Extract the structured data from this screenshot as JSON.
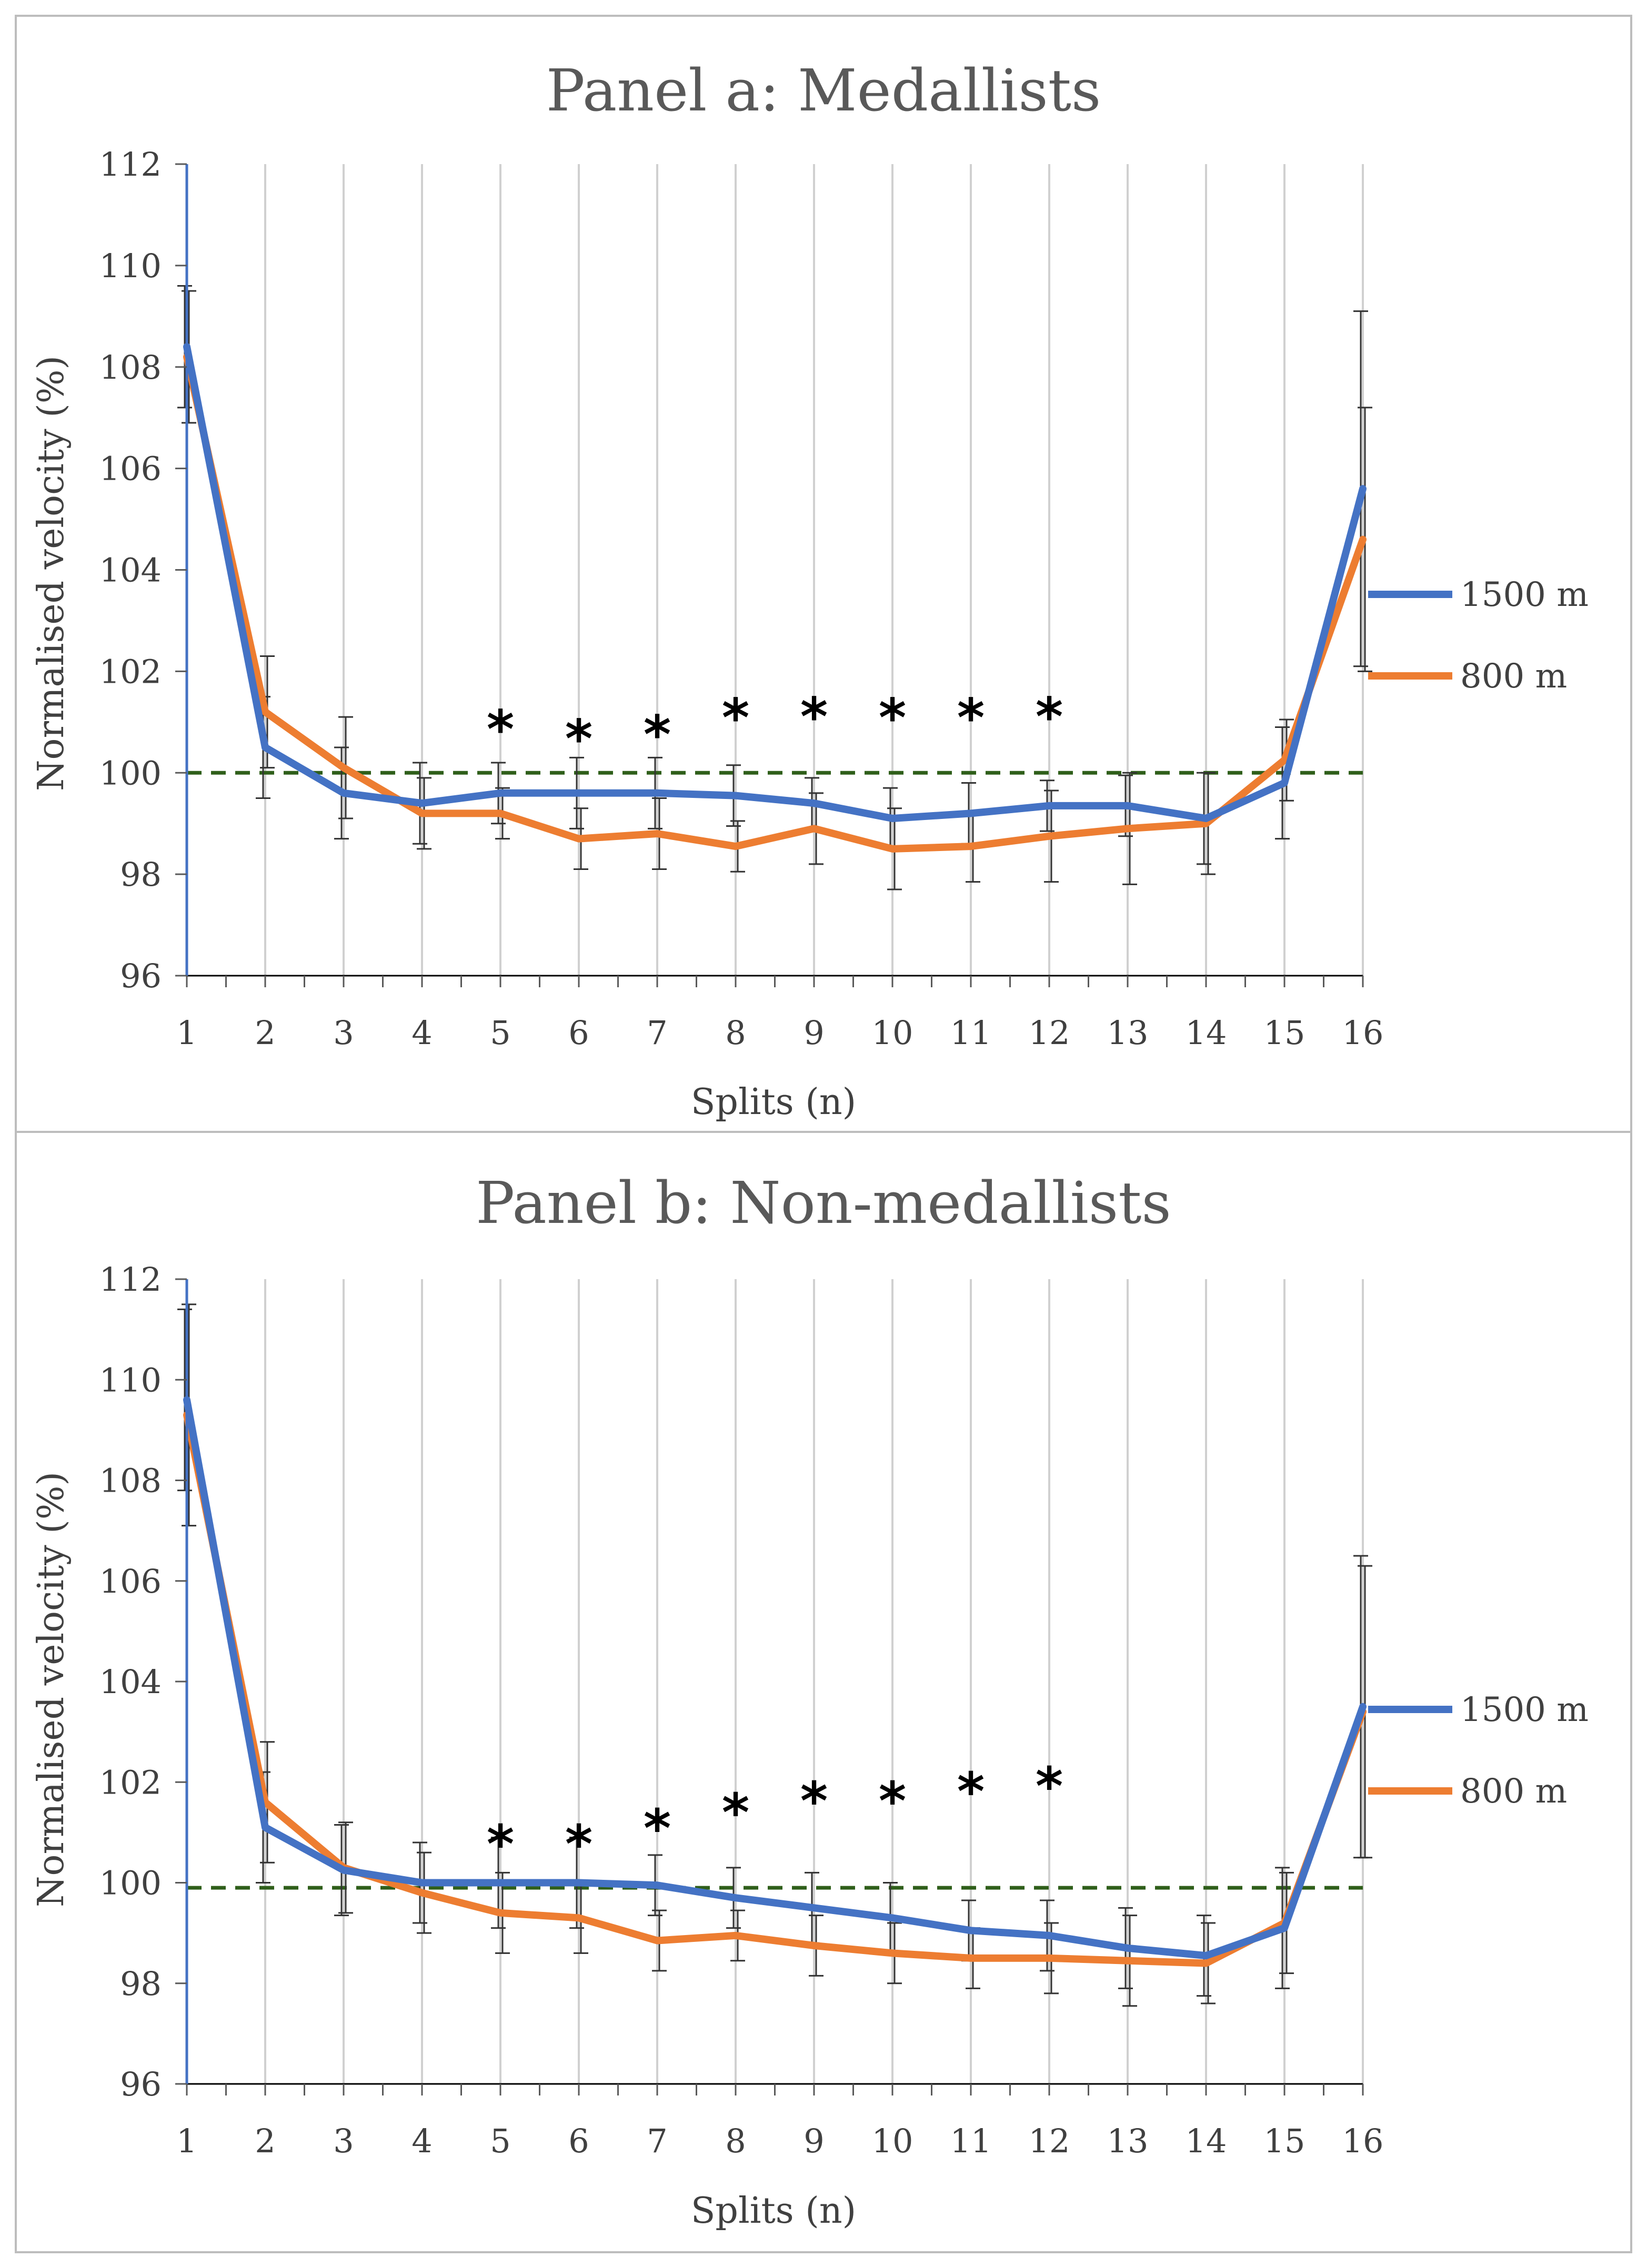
{
  "colors": {
    "series_1500": "#4472c4",
    "series_800": "#ed7d31",
    "reference": "#2f5f1a",
    "error_bar": "#333333"
  },
  "chart_data": [
    {
      "type": "line",
      "title": "Panel a: Medallists",
      "xlabel": "Splits (n)",
      "ylabel": "Normalised velocity (%)",
      "categories": [
        "1",
        "2",
        "3",
        "4",
        "5",
        "6",
        "7",
        "8",
        "9",
        "10",
        "11",
        "12",
        "13",
        "14",
        "15",
        "16"
      ],
      "ylim": [
        96,
        112
      ],
      "yticks": [
        "96",
        "98",
        "100",
        "102",
        "104",
        "106",
        "108",
        "110",
        "112"
      ],
      "reference_line": 100,
      "series": [
        {
          "name": "1500 m",
          "color": "#4472c4",
          "values": [
            108.4,
            100.5,
            99.6,
            99.4,
            99.6,
            99.6,
            99.6,
            99.55,
            99.4,
            99.1,
            99.2,
            99.35,
            99.35,
            99.1,
            99.8,
            105.6
          ],
          "error": [
            1.2,
            1.0,
            0.9,
            0.8,
            0.6,
            0.7,
            0.7,
            0.6,
            0.5,
            0.6,
            0.6,
            0.5,
            0.6,
            0.9,
            1.1,
            3.5
          ]
        },
        {
          "name": "800 m",
          "color": "#ed7d31",
          "values": [
            108.2,
            101.2,
            100.1,
            99.2,
            99.2,
            98.7,
            98.8,
            98.55,
            98.9,
            98.5,
            98.55,
            98.75,
            98.9,
            99.0,
            100.25,
            104.6
          ],
          "error": [
            1.3,
            1.1,
            1.0,
            0.7,
            0.5,
            0.6,
            0.7,
            0.5,
            0.7,
            0.8,
            0.7,
            0.9,
            1.1,
            1.0,
            0.8,
            2.6
          ]
        }
      ],
      "significance_markers": [
        "5",
        "6",
        "7",
        "8",
        "9",
        "10",
        "11",
        "12"
      ],
      "significance_symbol": "*"
    },
    {
      "type": "line",
      "title": "Panel b: Non-medallists",
      "xlabel": "Splits (n)",
      "ylabel": "Normalised velocity (%)",
      "categories": [
        "1",
        "2",
        "3",
        "4",
        "5",
        "6",
        "7",
        "8",
        "9",
        "10",
        "11",
        "12",
        "13",
        "14",
        "15",
        "16"
      ],
      "ylim": [
        96,
        112
      ],
      "yticks": [
        "96",
        "98",
        "100",
        "102",
        "104",
        "106",
        "108",
        "110",
        "112"
      ],
      "reference_line": 99.9,
      "series": [
        {
          "name": "1500 m",
          "color": "#4472c4",
          "values": [
            109.6,
            101.1,
            100.25,
            100.0,
            100.0,
            100.0,
            99.95,
            99.7,
            99.5,
            99.3,
            99.05,
            98.95,
            98.7,
            98.55,
            99.1,
            103.5
          ],
          "error": [
            1.8,
            1.1,
            0.9,
            0.8,
            0.9,
            0.9,
            0.6,
            0.6,
            0.7,
            0.7,
            0.6,
            0.7,
            0.8,
            0.8,
            1.2,
            3.0
          ]
        },
        {
          "name": "800 m",
          "color": "#ed7d31",
          "values": [
            109.3,
            101.6,
            100.3,
            99.8,
            99.4,
            99.3,
            98.85,
            98.95,
            98.75,
            98.6,
            98.5,
            98.5,
            98.45,
            98.4,
            99.2,
            103.4
          ],
          "error": [
            2.2,
            1.2,
            0.9,
            0.8,
            0.8,
            0.7,
            0.6,
            0.5,
            0.6,
            0.6,
            0.6,
            0.7,
            0.9,
            0.8,
            1.0,
            2.9
          ]
        }
      ],
      "significance_markers": [
        "5",
        "6",
        "7",
        "8",
        "9",
        "10",
        "11",
        "12"
      ],
      "significance_symbol": "*"
    }
  ]
}
